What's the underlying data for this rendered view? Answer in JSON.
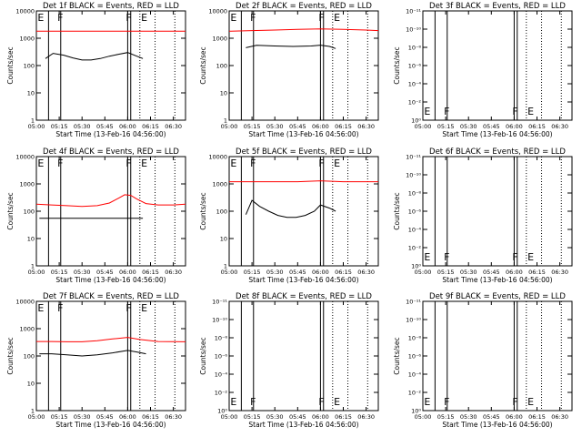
{
  "colors": {
    "events": "#000000",
    "lld": "#ff0000",
    "background": "#ffffff",
    "axes": "#000000"
  },
  "chart_data": [
    {
      "type": "line",
      "title": "Det 1f BLACK = Events, RED = LLD",
      "xlabel": "Start Time (13-Feb-16 04:56:00)",
      "ylabel": "Counts/sec",
      "xlim": [
        "05:00",
        "06:38"
      ],
      "yscale": "log",
      "ylim": [
        1,
        10000
      ],
      "xticks": [
        "05:00",
        "05:15",
        "05:30",
        "05:45",
        "06:00",
        "06:15",
        "06:30"
      ],
      "yticks": [
        "1",
        "10",
        "100",
        "1000",
        "10000"
      ],
      "flags": [
        {
          "label": "E",
          "t": "05:02"
        },
        {
          "label": "F",
          "t": "05:15"
        },
        {
          "label": "F",
          "t": "06:00"
        },
        {
          "label": "E",
          "t": "06:10"
        }
      ],
      "solid_lines": [
        "05:08",
        "05:16",
        "06:00",
        "06:02"
      ],
      "dotted_lines": [
        "06:08",
        "06:18",
        "06:31"
      ],
      "series": [
        {
          "name": "Events",
          "x": [
            "05:06",
            "05:11",
            "05:18",
            "05:24",
            "05:30",
            "05:36",
            "05:42",
            "05:48",
            "05:54",
            "06:00",
            "06:06",
            "06:10"
          ],
          "values": [
            180,
            280,
            240,
            190,
            160,
            160,
            180,
            220,
            260,
            300,
            220,
            180
          ]
        },
        {
          "name": "LLD",
          "x": [
            "05:00",
            "05:15",
            "05:30",
            "05:45",
            "06:00",
            "06:15",
            "06:30",
            "06:38"
          ],
          "values": [
            1800,
            1800,
            1800,
            1800,
            1800,
            1800,
            1800,
            1800
          ]
        }
      ]
    },
    {
      "type": "line",
      "title": "Det 2f BLACK = Events, RED = LLD",
      "xlabel": "Start Time (13-Feb-16 04:56:00)",
      "ylabel": "Counts/sec",
      "xlim": [
        "05:00",
        "06:38"
      ],
      "yscale": "log",
      "ylim": [
        1,
        10000
      ],
      "xticks": [
        "05:00",
        "05:15",
        "05:30",
        "05:45",
        "06:00",
        "06:15",
        "06:30"
      ],
      "yticks": [
        "1",
        "10",
        "100",
        "1000",
        "10000"
      ],
      "flags": [
        {
          "label": "E",
          "t": "05:02"
        },
        {
          "label": "F",
          "t": "05:15"
        },
        {
          "label": "F",
          "t": "06:00"
        },
        {
          "label": "E",
          "t": "06:10"
        }
      ],
      "solid_lines": [
        "05:08",
        "05:16",
        "06:00",
        "06:02"
      ],
      "dotted_lines": [
        "06:08",
        "06:18",
        "06:31"
      ],
      "series": [
        {
          "name": "Events",
          "x": [
            "05:11",
            "05:18",
            "05:30",
            "05:42",
            "05:54",
            "06:00",
            "06:06",
            "06:10"
          ],
          "values": [
            450,
            550,
            520,
            500,
            520,
            560,
            500,
            420
          ]
        },
        {
          "name": "LLD",
          "x": [
            "05:00",
            "05:15",
            "05:30",
            "05:45",
            "06:00",
            "06:15",
            "06:30",
            "06:38"
          ],
          "values": [
            1800,
            1900,
            2000,
            2100,
            2200,
            2100,
            2000,
            1900
          ]
        }
      ]
    },
    {
      "type": "line",
      "title": "Det 3f BLACK = Events, RED = LLD",
      "xlabel": "Start Time (13-Feb-16 04:56:00)",
      "ylabel": "Counts/sec",
      "xlim": [
        "05:00",
        "06:38"
      ],
      "yscale": "log",
      "ylim": [
        1,
        1e-12
      ],
      "xticks": [
        "05:00",
        "05:15",
        "05:30",
        "05:45",
        "06:00",
        "06:15",
        "06:30"
      ],
      "yticks": [
        "10⁰",
        "10⁻²",
        "10⁻⁴",
        "10⁻⁶",
        "10⁻⁸",
        "10⁻¹⁰",
        "10⁻¹¹"
      ],
      "flags": [
        {
          "label": "E",
          "t": "05:02"
        },
        {
          "label": "F",
          "t": "05:15"
        },
        {
          "label": "F",
          "t": "06:00"
        },
        {
          "label": "E",
          "t": "06:10"
        }
      ],
      "solid_lines": [
        "05:08",
        "05:16",
        "06:00",
        "06:02"
      ],
      "dotted_lines": [
        "06:08",
        "06:18",
        "06:31"
      ],
      "series": []
    },
    {
      "type": "line",
      "title": "Det 4f BLACK = Events, RED = LLD",
      "xlabel": "Start Time (13-Feb-16 04:56:00)",
      "ylabel": "Counts/sec",
      "xlim": [
        "05:00",
        "06:38"
      ],
      "yscale": "log",
      "ylim": [
        1,
        10000
      ],
      "xticks": [
        "05:00",
        "05:15",
        "05:30",
        "05:45",
        "06:00",
        "06:15",
        "06:30"
      ],
      "yticks": [
        "1",
        "10",
        "100",
        "1000",
        "10000"
      ],
      "flags": [
        {
          "label": "E",
          "t": "05:02"
        },
        {
          "label": "F",
          "t": "05:15"
        },
        {
          "label": "F",
          "t": "06:00"
        },
        {
          "label": "E",
          "t": "06:10"
        }
      ],
      "solid_lines": [
        "05:08",
        "05:16",
        "06:00",
        "06:02"
      ],
      "dotted_lines": [
        "06:08",
        "06:18",
        "06:31"
      ],
      "series": [
        {
          "name": "Events",
          "x": [
            "05:02",
            "05:10",
            "05:20",
            "05:30",
            "05:40",
            "05:50",
            "06:00",
            "06:10"
          ],
          "values": [
            55,
            55,
            55,
            55,
            55,
            55,
            55,
            55
          ]
        },
        {
          "name": "LLD",
          "x": [
            "05:00",
            "05:10",
            "05:20",
            "05:30",
            "05:40",
            "05:48",
            "05:54",
            "05:58",
            "06:02",
            "06:06",
            "06:12",
            "06:20",
            "06:30",
            "06:38"
          ],
          "values": [
            180,
            170,
            160,
            150,
            160,
            200,
            300,
            400,
            380,
            280,
            190,
            170,
            170,
            180
          ]
        }
      ]
    },
    {
      "type": "line",
      "title": "Det 5f BLACK = Events, RED = LLD",
      "xlabel": "Start Time (13-Feb-16 04:56:00)",
      "ylabel": "Counts/sec",
      "xlim": [
        "05:00",
        "06:38"
      ],
      "yscale": "log",
      "ylim": [
        1,
        10000
      ],
      "xticks": [
        "05:00",
        "05:15",
        "05:30",
        "05:45",
        "06:00",
        "06:15",
        "06:30"
      ],
      "yticks": [
        "1",
        "10",
        "100",
        "1000",
        "10000"
      ],
      "flags": [
        {
          "label": "E",
          "t": "05:02"
        },
        {
          "label": "F",
          "t": "05:15"
        },
        {
          "label": "F",
          "t": "06:00"
        },
        {
          "label": "E",
          "t": "06:10"
        }
      ],
      "solid_lines": [
        "05:08",
        "05:16",
        "06:00",
        "06:02"
      ],
      "dotted_lines": [
        "06:08",
        "06:18",
        "06:31"
      ],
      "series": [
        {
          "name": "Events",
          "x": [
            "05:11",
            "05:15",
            "05:20",
            "05:26",
            "05:32",
            "05:38",
            "05:44",
            "05:50",
            "05:56",
            "06:00",
            "06:06",
            "06:10"
          ],
          "values": [
            75,
            250,
            150,
            100,
            70,
            60,
            60,
            70,
            100,
            170,
            130,
            100
          ]
        },
        {
          "name": "LLD",
          "x": [
            "05:00",
            "05:15",
            "05:30",
            "05:45",
            "06:00",
            "06:15",
            "06:30",
            "06:38"
          ],
          "values": [
            1200,
            1200,
            1200,
            1200,
            1300,
            1200,
            1200,
            1200
          ]
        }
      ]
    },
    {
      "type": "line",
      "title": "Det 6f BLACK = Events, RED = LLD",
      "xlabel": "Start Time (13-Feb-16 04:56:00)",
      "ylabel": "Counts/sec",
      "xlim": [
        "05:00",
        "06:38"
      ],
      "yscale": "log",
      "ylim": [
        1,
        1e-12
      ],
      "xticks": [
        "05:00",
        "05:15",
        "05:30",
        "05:45",
        "06:00",
        "06:15",
        "06:30"
      ],
      "yticks": [
        "10⁰",
        "10⁻²",
        "10⁻⁴",
        "10⁻⁶",
        "10⁻⁸",
        "10⁻¹⁰",
        "10⁻¹¹"
      ],
      "flags": [
        {
          "label": "E",
          "t": "05:02"
        },
        {
          "label": "F",
          "t": "05:15"
        },
        {
          "label": "F",
          "t": "06:00"
        },
        {
          "label": "E",
          "t": "06:10"
        }
      ],
      "solid_lines": [
        "05:08",
        "05:16",
        "06:00",
        "06:02"
      ],
      "dotted_lines": [
        "06:08",
        "06:18",
        "06:31"
      ],
      "series": []
    },
    {
      "type": "line",
      "title": "Det 7f BLACK = Events, RED = LLD",
      "xlabel": "Start Time (13-Feb-16 04:56:00)",
      "ylabel": "Counts/sec",
      "xlim": [
        "05:00",
        "06:38"
      ],
      "yscale": "log",
      "ylim": [
        1,
        10000
      ],
      "xticks": [
        "05:00",
        "05:15",
        "05:30",
        "05:45",
        "06:00",
        "06:15",
        "06:30"
      ],
      "yticks": [
        "1",
        "10",
        "100",
        "1000",
        "10000"
      ],
      "flags": [
        {
          "label": "E",
          "t": "05:02"
        },
        {
          "label": "F",
          "t": "05:15"
        },
        {
          "label": "F",
          "t": "06:00"
        },
        {
          "label": "E",
          "t": "06:10"
        }
      ],
      "solid_lines": [
        "05:08",
        "05:16",
        "06:00",
        "06:02"
      ],
      "dotted_lines": [
        "06:08",
        "06:18",
        "06:31"
      ],
      "series": [
        {
          "name": "Events",
          "x": [
            "05:02",
            "05:10",
            "05:20",
            "05:30",
            "05:40",
            "05:50",
            "06:00",
            "06:06",
            "06:12"
          ],
          "values": [
            120,
            120,
            110,
            100,
            110,
            130,
            160,
            140,
            120
          ]
        },
        {
          "name": "LLD",
          "x": [
            "05:00",
            "05:10",
            "05:20",
            "05:30",
            "05:40",
            "05:50",
            "06:00",
            "06:08",
            "06:20",
            "06:38"
          ],
          "values": [
            340,
            340,
            330,
            330,
            360,
            420,
            480,
            400,
            340,
            330
          ]
        }
      ]
    },
    {
      "type": "line",
      "title": "Det 8f BLACK = Events, RED = LLD",
      "xlabel": "Start Time (13-Feb-16 04:56:00)",
      "ylabel": "Counts/sec",
      "xlim": [
        "05:00",
        "06:38"
      ],
      "yscale": "log",
      "ylim": [
        1,
        1e-12
      ],
      "xticks": [
        "05:00",
        "05:15",
        "05:30",
        "05:45",
        "06:00",
        "06:15",
        "06:30"
      ],
      "yticks": [
        "10⁰",
        "10⁻²",
        "10⁻⁴",
        "10⁻⁶",
        "10⁻⁸",
        "10⁻¹⁰",
        "10⁻¹¹"
      ],
      "flags": [
        {
          "label": "E",
          "t": "05:02"
        },
        {
          "label": "F",
          "t": "05:15"
        },
        {
          "label": "F",
          "t": "06:00"
        },
        {
          "label": "E",
          "t": "06:10"
        }
      ],
      "solid_lines": [
        "05:08",
        "05:16",
        "06:00",
        "06:02"
      ],
      "dotted_lines": [
        "06:08",
        "06:18",
        "06:31"
      ],
      "series": []
    },
    {
      "type": "line",
      "title": "Det 9f BLACK = Events, RED = LLD",
      "xlabel": "Start Time (13-Feb-16 04:56:00)",
      "ylabel": "Counts/sec",
      "xlim": [
        "05:00",
        "06:38"
      ],
      "yscale": "log",
      "ylim": [
        1,
        1e-12
      ],
      "xticks": [
        "05:00",
        "05:15",
        "05:30",
        "05:45",
        "06:00",
        "06:15",
        "06:30"
      ],
      "yticks": [
        "10⁰",
        "10⁻²",
        "10⁻⁴",
        "10⁻⁶",
        "10⁻⁸",
        "10⁻¹⁰",
        "10⁻¹¹"
      ],
      "flags": [
        {
          "label": "E",
          "t": "05:02"
        },
        {
          "label": "F",
          "t": "05:15"
        },
        {
          "label": "F",
          "t": "06:00"
        },
        {
          "label": "E",
          "t": "06:10"
        }
      ],
      "solid_lines": [
        "05:08",
        "05:16",
        "06:00",
        "06:02"
      ],
      "dotted_lines": [
        "06:08",
        "06:18",
        "06:31"
      ],
      "series": []
    }
  ]
}
